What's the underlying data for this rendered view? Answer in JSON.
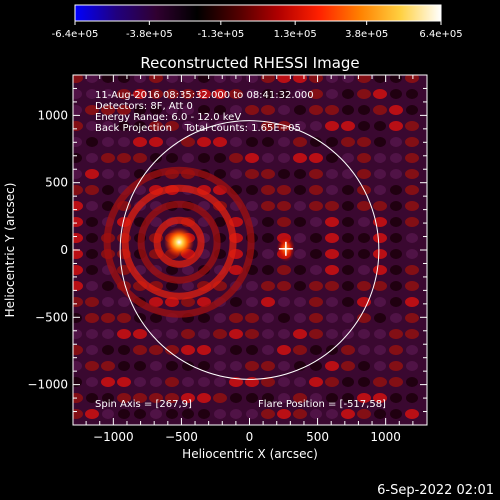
{
  "colorbar": {
    "ticks": [
      "-6.4e+05",
      "-3.8e+05",
      "-1.3e+05",
      "1.3e+05",
      "3.8e+05",
      "6.4e+05"
    ],
    "tick_values": [
      -640000,
      -380000,
      -130000,
      130000,
      380000,
      640000
    ],
    "range": [
      -640000,
      640000
    ],
    "colors": [
      "#0000ff",
      "#200080",
      "#300030",
      "#000000",
      "#500000",
      "#b00000",
      "#ff2000",
      "#ff8000",
      "#ffd040",
      "#ffffff"
    ]
  },
  "plot": {
    "title": "Reconstructed RHESSI Image",
    "info_lines": [
      "11-Aug-2016 08:35:32.000 to 08:41:32.000",
      "Detectors: 8F, Att 0",
      "Energy Range: 6.0 - 12.0 keV",
      "Back Projection    Total counts: 1.65E+05"
    ],
    "spin_axis": "Spin Axis = [267,9]",
    "flare_position": "Flare Position = [-517,58]",
    "footer_date": "6-Sep-2022 02:01"
  },
  "chart_data": {
    "type": "heatmap",
    "title": "Reconstructed RHESSI Image",
    "xlabel": "Heliocentric X (arcsec)",
    "ylabel": "Heliocentric Y (arcsec)",
    "xlim": [
      -1300,
      1300
    ],
    "ylim": [
      -1300,
      1300
    ],
    "xticks": [
      -1000,
      -500,
      0,
      500,
      1000
    ],
    "yticks": [
      -1000,
      -500,
      0,
      500,
      1000
    ],
    "xtick_labels": [
      "−1000",
      "−500",
      "0",
      "500",
      "1000"
    ],
    "ytick_labels": [
      "−1000",
      "−500",
      "0",
      "500",
      "1000"
    ],
    "solar_limb_radius_arcsec": 950,
    "sources": [
      {
        "x": -517,
        "y": 58,
        "peak": "max"
      },
      {
        "x": 267,
        "y": 9,
        "peak": "secondary"
      }
    ],
    "cross_marker": {
      "x": 267,
      "y": 9
    }
  }
}
